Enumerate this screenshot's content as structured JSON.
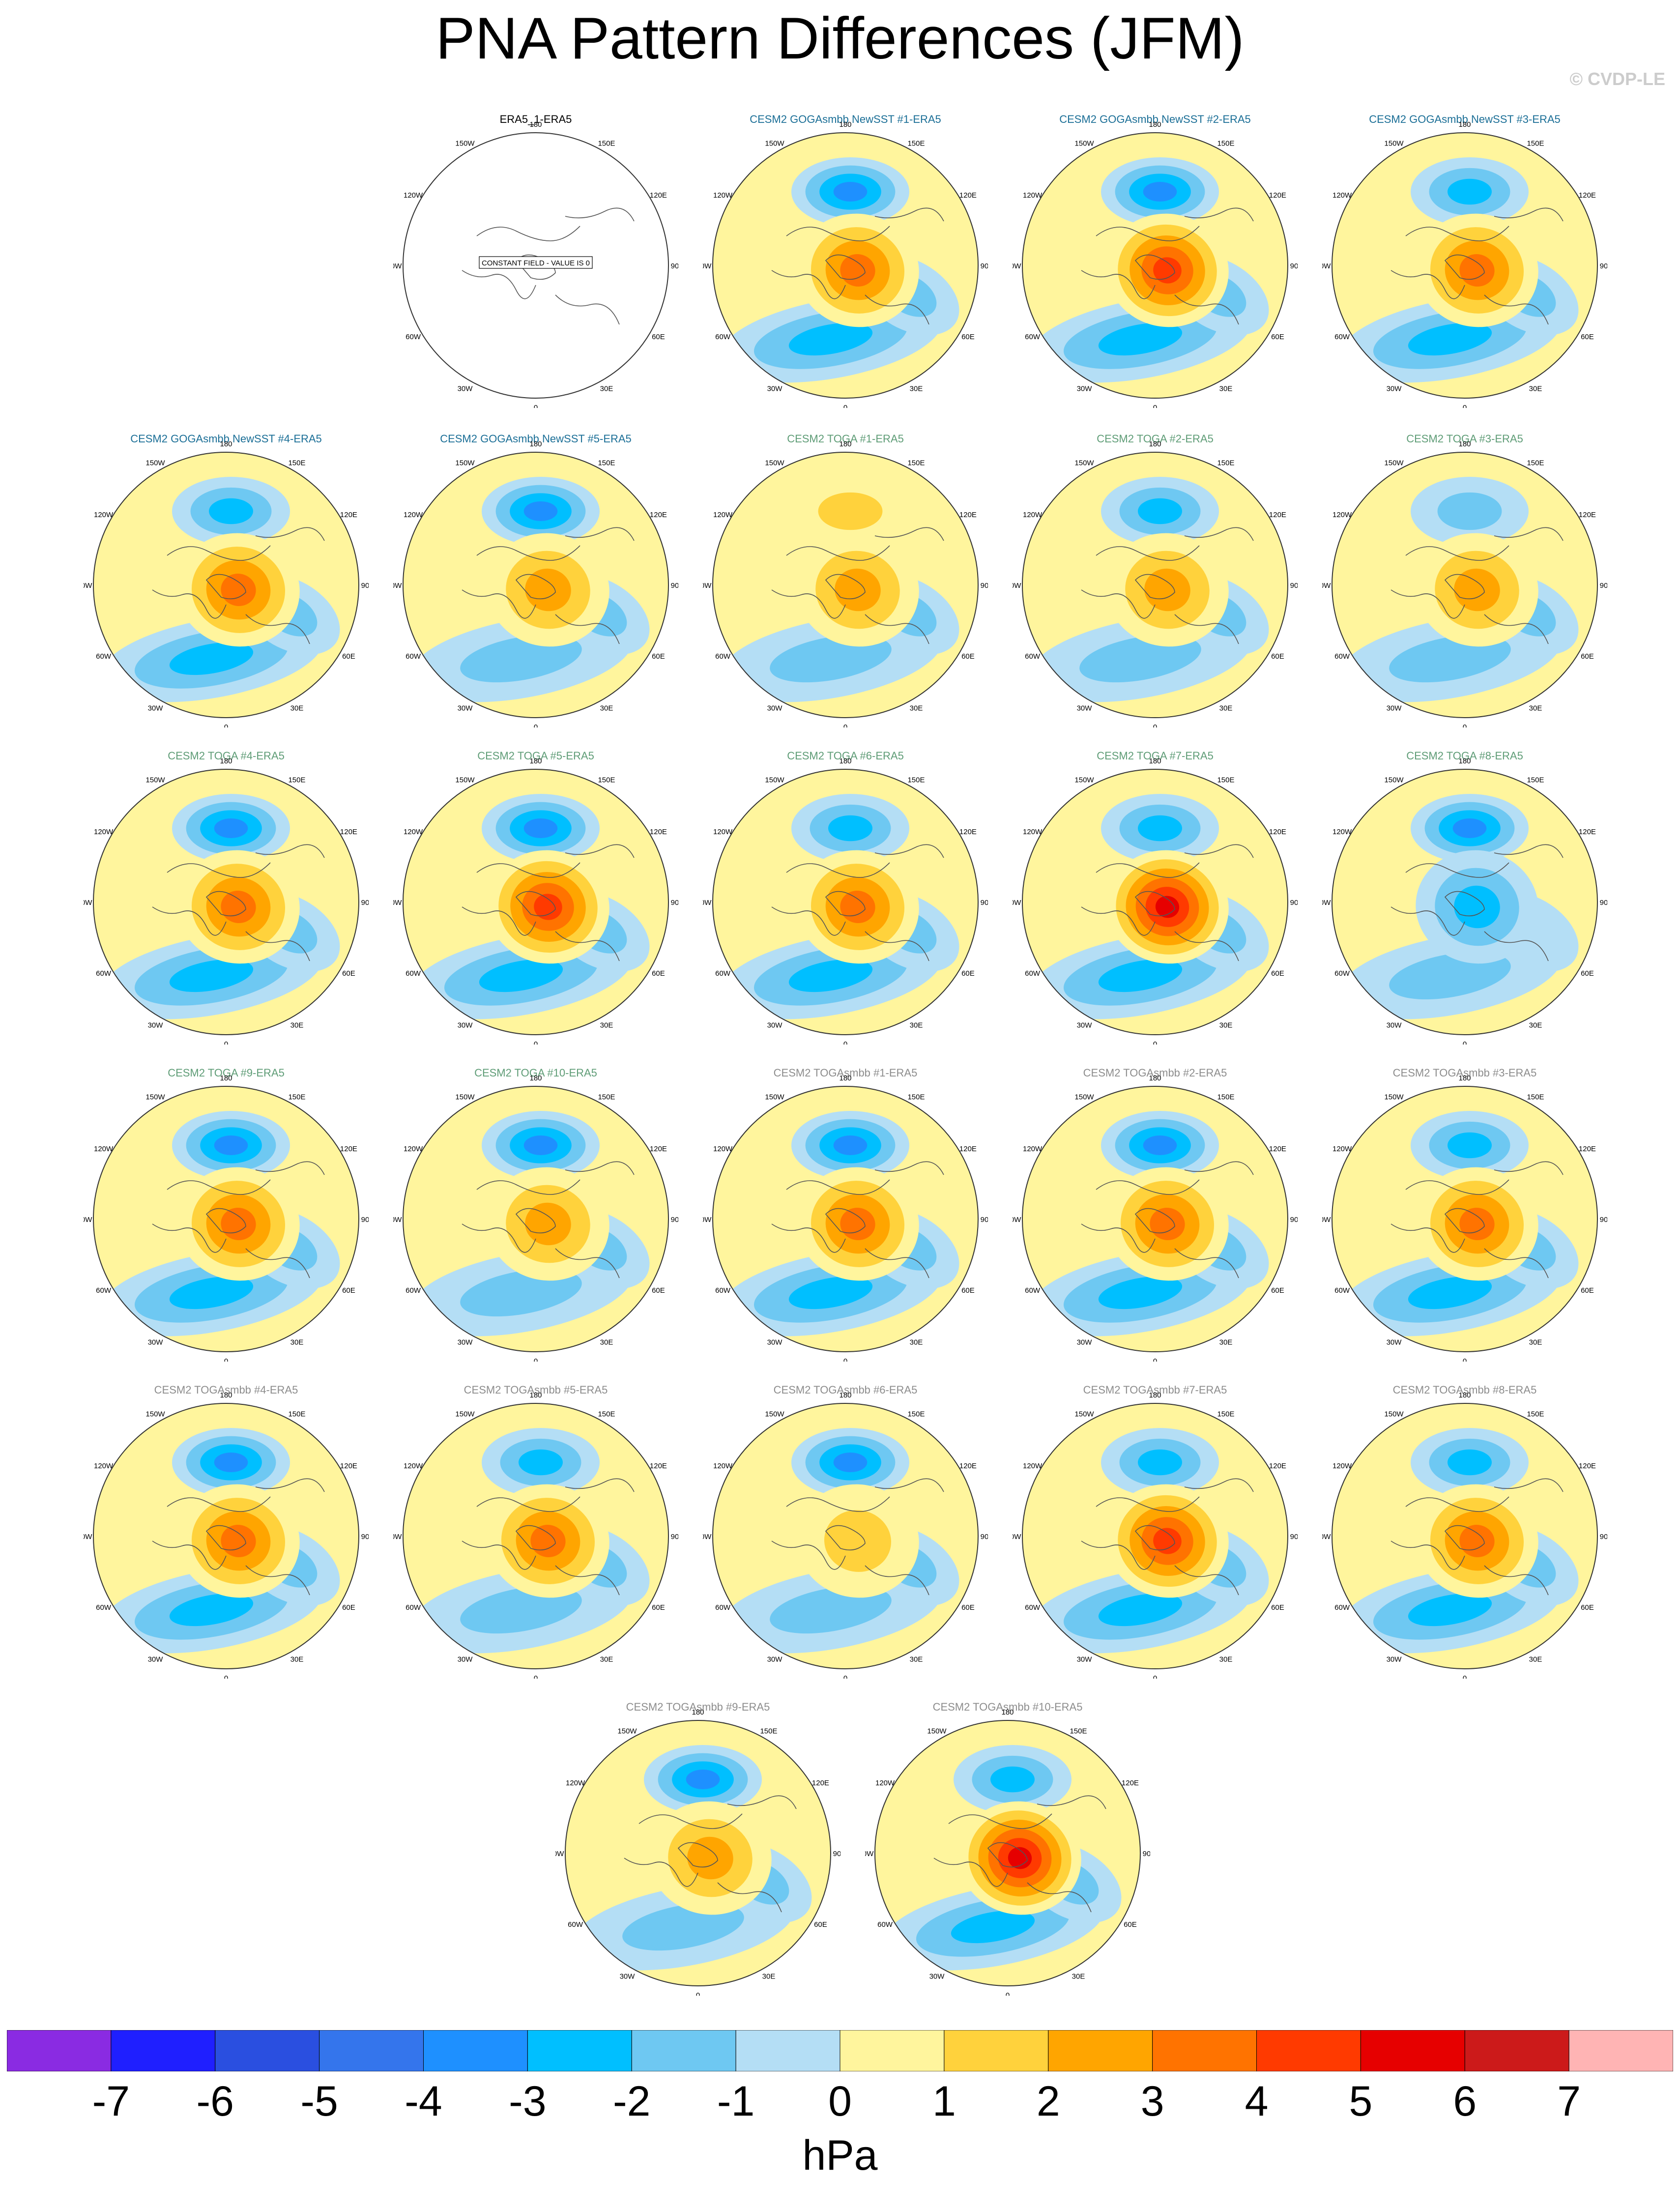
{
  "title": "PNA Pattern Differences (JFM)",
  "copyright": "© CVDP-LE",
  "lon_labels": [
    "180",
    "150E",
    "120E",
    "90E",
    "60E",
    "30E",
    "0",
    "30W",
    "60W",
    "90W",
    "120W",
    "150W"
  ],
  "constant_field_text": "CONSTANT FIELD - VALUE IS 0",
  "colors": {
    "title_obs": "#000000",
    "title_goga": "#1a6e96",
    "title_toga": "#5e9c76",
    "title_togasmbb": "#8c8c8c",
    "coast": "#555555"
  },
  "colorbar": {
    "units": "hPa",
    "tick_labels": [
      "-7",
      "-6",
      "-5",
      "-4",
      "-3",
      "-2",
      "-1",
      "0",
      "1",
      "2",
      "3",
      "4",
      "5",
      "6",
      "7"
    ],
    "colors": [
      "#8a2be2",
      "#1f1fff",
      "#2a4fe0",
      "#3475ec",
      "#1e90ff",
      "#00bfff",
      "#6ec8f2",
      "#b4def5",
      "#fff59d",
      "#ffd23c",
      "#ffa500",
      "#ff7300",
      "#ff3a00",
      "#e60000",
      "#cc1a1a",
      "#ffb4b4"
    ]
  },
  "panels": [
    {
      "title": "ERA5_1-ERA5",
      "group": "obs",
      "constant": true
    },
    {
      "title": "CESM2 GOGAsmbb NewSST #1-ERA5",
      "group": "goga",
      "ao": 3.5,
      "pac": -3,
      "atl": -2
    },
    {
      "title": "CESM2 GOGAsmbb NewSST #2-ERA5",
      "group": "goga",
      "ao": 4,
      "pac": -3,
      "atl": -2.5
    },
    {
      "title": "CESM2 GOGAsmbb NewSST #3-ERA5",
      "group": "goga",
      "ao": 3.5,
      "pac": -2,
      "atl": -2
    },
    {
      "title": "CESM2 GOGAsmbb NewSST #4-ERA5",
      "group": "goga",
      "ao": 3,
      "pac": -2,
      "atl": -2
    },
    {
      "title": "CESM2 GOGAsmbb NewSST #5-ERA5",
      "group": "goga",
      "ao": 2,
      "pac": -3,
      "atl": -1.5
    },
    {
      "title": "CESM2 TOGA #1-ERA5",
      "group": "toga",
      "ao": 2,
      "pac": 1.5,
      "atl": -1.5
    },
    {
      "title": "CESM2 TOGA #2-ERA5",
      "group": "toga",
      "ao": 2.5,
      "pac": -2.5,
      "atl": -1.5
    },
    {
      "title": "CESM2 TOGA #3-ERA5",
      "group": "toga",
      "ao": 2.5,
      "pac": -1.5,
      "atl": -1.5
    },
    {
      "title": "CESM2 TOGA #4-ERA5",
      "group": "toga",
      "ao": 3.5,
      "pac": -3.5,
      "atl": -2
    },
    {
      "title": "CESM2 TOGA #5-ERA5",
      "group": "toga",
      "ao": 4,
      "pac": -3,
      "atl": -2
    },
    {
      "title": "CESM2 TOGA #6-ERA5",
      "group": "toga",
      "ao": 3.5,
      "pac": -2.5,
      "atl": -2
    },
    {
      "title": "CESM2 TOGA #7-ERA5",
      "group": "toga",
      "ao": 5,
      "pac": -2.5,
      "atl": -2.5
    },
    {
      "title": "CESM2 TOGA #8-ERA5",
      "group": "toga",
      "ao": -2,
      "pac": -3,
      "atl": -1
    },
    {
      "title": "CESM2 TOGA #9-ERA5",
      "group": "toga",
      "ao": 3,
      "pac": -3.5,
      "atl": -2
    },
    {
      "title": "CESM2 TOGA #10-ERA5",
      "group": "toga",
      "ao": 2.5,
      "pac": -3,
      "atl": -1.5
    },
    {
      "title": "CESM2 TOGAsmbb #1-ERA5",
      "group": "togasmbb",
      "ao": 3,
      "pac": -3.5,
      "atl": -2
    },
    {
      "title": "CESM2 TOGAsmbb #2-ERA5",
      "group": "togasmbb",
      "ao": 3,
      "pac": -3.5,
      "atl": -2
    },
    {
      "title": "CESM2 TOGAsmbb #3-ERA5",
      "group": "togasmbb",
      "ao": 3.5,
      "pac": -2.5,
      "atl": -2
    },
    {
      "title": "CESM2 TOGAsmbb #4-ERA5",
      "group": "togasmbb",
      "ao": 3.5,
      "pac": -3.5,
      "atl": -2.5
    },
    {
      "title": "CESM2 TOGAsmbb #5-ERA5",
      "group": "togasmbb",
      "ao": 3,
      "pac": -2.5,
      "atl": -1.5
    },
    {
      "title": "CESM2 TOGAsmbb #6-ERA5",
      "group": "togasmbb",
      "ao": 1.5,
      "pac": -3.5,
      "atl": -1.5
    },
    {
      "title": "CESM2 TOGAsmbb #7-ERA5",
      "group": "togasmbb",
      "ao": 4,
      "pac": -2,
      "atl": -2.5
    },
    {
      "title": "CESM2 TOGAsmbb #8-ERA5",
      "group": "togasmbb",
      "ao": 3,
      "pac": -2,
      "atl": -2
    },
    {
      "title": "CESM2 TOGAsmbb #9-ERA5",
      "group": "togasmbb",
      "ao": 2.5,
      "pac": -3.5,
      "atl": -1.5
    },
    {
      "title": "CESM2 TOGAsmbb #10-ERA5",
      "group": "togasmbb",
      "ao": 5.5,
      "pac": -2.5,
      "atl": -2.5
    }
  ]
}
